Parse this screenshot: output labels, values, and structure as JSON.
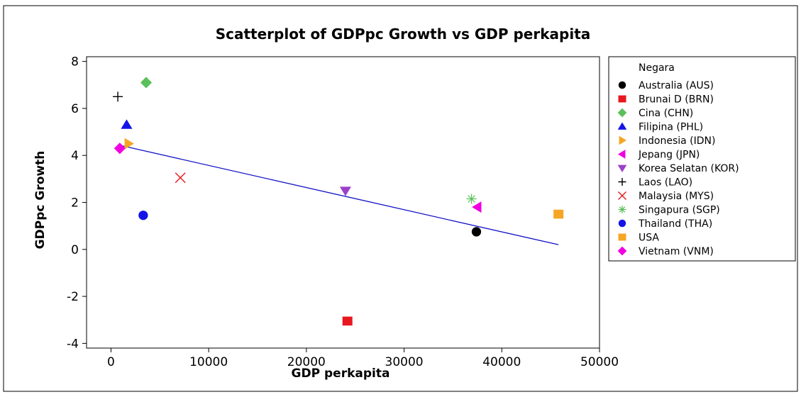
{
  "chart_data": {
    "type": "scatter",
    "title": "Scatterplot of GDPpc Growth vs GDP perkapita",
    "xlabel": "GDP perkapita",
    "ylabel": "GDPpc Growth",
    "xlim": [
      -2500,
      50000
    ],
    "ylim": [
      -4.2,
      8.2
    ],
    "xticks": [
      0,
      10000,
      20000,
      30000,
      40000,
      50000
    ],
    "yticks": [
      -4,
      -2,
      0,
      2,
      4,
      6,
      8
    ],
    "grid": false,
    "legend_title": "Negara",
    "legend_position": "right",
    "series": [
      {
        "name": "Australia (AUS)",
        "marker": "circle",
        "color": "#000000",
        "x": 37400,
        "y": 0.75
      },
      {
        "name": "Brunai D (BRN)",
        "marker": "square",
        "color": "#e8171f",
        "x": 24200,
        "y": -3.05
      },
      {
        "name": "Cina (CHN)",
        "marker": "diamond",
        "color": "#5bc05b",
        "x": 3600,
        "y": 7.1
      },
      {
        "name": "Filipina (PHL)",
        "marker": "triangle-up",
        "color": "#1414e6",
        "x": 1600,
        "y": 5.3
      },
      {
        "name": "Indonesia (IDN)",
        "marker": "triangle-right",
        "color": "#f5a623",
        "x": 1800,
        "y": 4.5
      },
      {
        "name": "Jepang (JPN)",
        "marker": "triangle-left",
        "color": "#f000e0",
        "x": 37500,
        "y": 1.8
      },
      {
        "name": "Korea Selatan (KOR)",
        "marker": "triangle-down",
        "color": "#9b40c8",
        "x": 24000,
        "y": 2.5
      },
      {
        "name": "Laos (LAO)",
        "marker": "plus",
        "color": "#000000",
        "x": 700,
        "y": 6.5
      },
      {
        "name": "Malaysia (MYS)",
        "marker": "cross",
        "color": "#e8171f",
        "x": 7100,
        "y": 3.05
      },
      {
        "name": "Singapura (SGP)",
        "marker": "asterisk",
        "color": "#5bc05b",
        "x": 36900,
        "y": 2.15
      },
      {
        "name": "Thailand (THA)",
        "marker": "circle",
        "color": "#1414e6",
        "x": 3300,
        "y": 1.45
      },
      {
        "name": "USA",
        "marker": "square",
        "color": "#f5a623",
        "x": 45800,
        "y": 1.5
      },
      {
        "name": "Vietnam (VNM)",
        "marker": "diamond",
        "color": "#f000e0",
        "x": 900,
        "y": 4.3
      }
    ],
    "regression_line": {
      "x": [
        700,
        45800
      ],
      "y": [
        4.45,
        0.2
      ],
      "color": "#1414c8"
    }
  }
}
